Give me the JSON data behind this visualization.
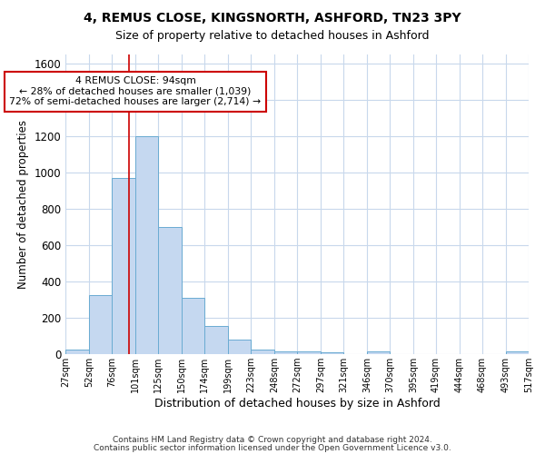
{
  "title1": "4, REMUS CLOSE, KINGSNORTH, ASHFORD, TN23 3PY",
  "title2": "Size of property relative to detached houses in Ashford",
  "xlabel": "Distribution of detached houses by size in Ashford",
  "ylabel": "Number of detached properties",
  "bin_edges": [
    27,
    52,
    76,
    101,
    125,
    150,
    174,
    199,
    223,
    248,
    272,
    297,
    321,
    346,
    370,
    395,
    419,
    444,
    468,
    493,
    517
  ],
  "bar_heights": [
    25,
    325,
    970,
    1200,
    700,
    310,
    155,
    80,
    25,
    15,
    15,
    10,
    0,
    15,
    0,
    0,
    0,
    0,
    0,
    15
  ],
  "bar_color": "#c5d8f0",
  "bar_edge_color": "#6aabd2",
  "vline_x": 94,
  "vline_color": "#cc0000",
  "ylim": [
    0,
    1650
  ],
  "yticks": [
    0,
    200,
    400,
    600,
    800,
    1000,
    1200,
    1400,
    1600
  ],
  "annotation_text": "4 REMUS CLOSE: 94sqm\n← 28% of detached houses are smaller (1,039)\n72% of semi-detached houses are larger (2,714) →",
  "annotation_box_color": "#ffffff",
  "annotation_box_edge": "#cc0000",
  "footer1": "Contains HM Land Registry data © Crown copyright and database right 2024.",
  "footer2": "Contains public sector information licensed under the Open Government Licence v3.0.",
  "bg_color": "#ffffff",
  "grid_color": "#c8d8ec"
}
